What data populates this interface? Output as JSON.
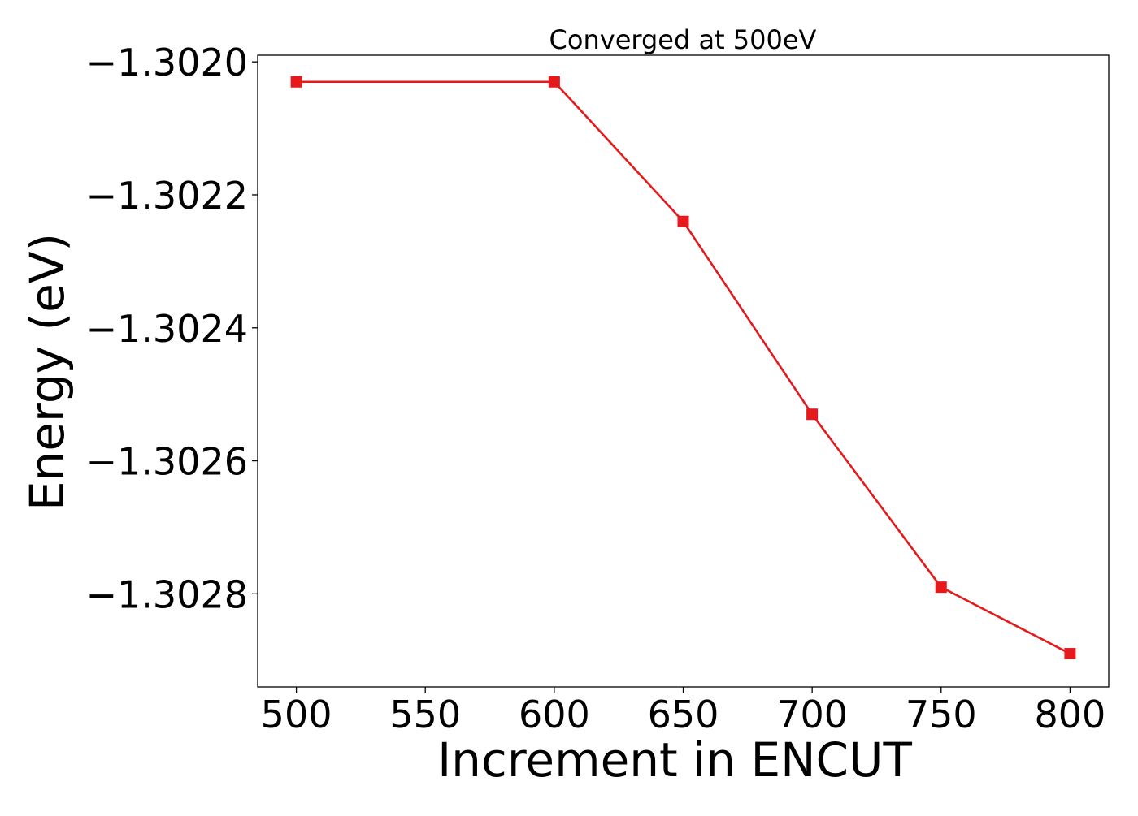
{
  "chart_data": {
    "type": "line",
    "title": "Converged at 500eV",
    "xlabel": "Increment in ENCUT",
    "ylabel": "Energy (eV)",
    "x": [
      500,
      600,
      650,
      700,
      750,
      800
    ],
    "series": [
      {
        "values": [
          -1.30203,
          -1.30203,
          -1.30224,
          -1.30253,
          -1.30279,
          -1.30289
        ],
        "color": "#e41a1c",
        "marker": "square"
      }
    ],
    "xlim": [
      485,
      815
    ],
    "ylim": [
      -1.30294,
      -1.30199
    ],
    "xticks": [
      500,
      550,
      600,
      650,
      700,
      750,
      800
    ],
    "xtick_labels": [
      "500",
      "550",
      "600",
      "650",
      "700",
      "750",
      "800"
    ],
    "yticks": [
      -1.3028,
      -1.3026,
      -1.3024,
      -1.3022,
      -1.302
    ],
    "ytick_labels": [
      "−1.3028",
      "−1.3026",
      "−1.3024",
      "−1.3022",
      "−1.3020"
    ],
    "grid": false,
    "legend": "none"
  }
}
